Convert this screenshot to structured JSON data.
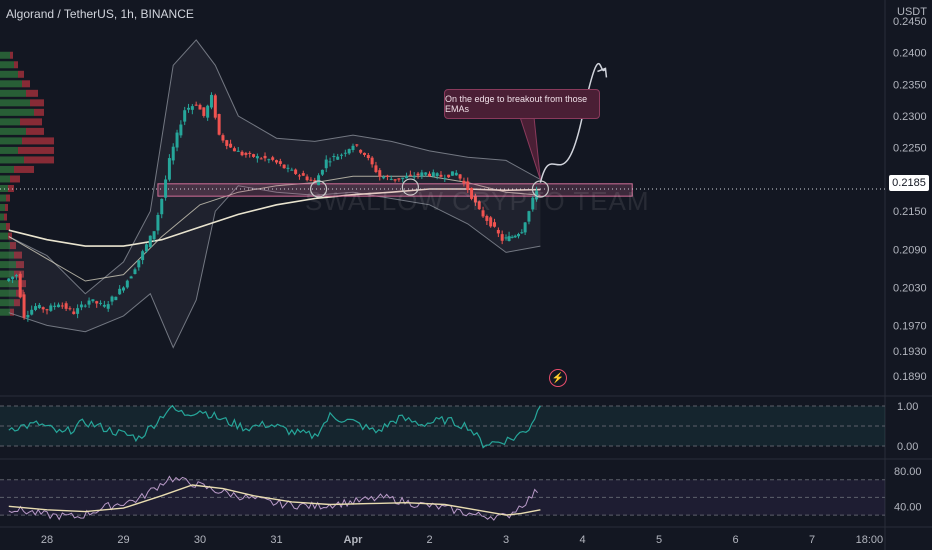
{
  "header": {
    "title": "Algorand / TetherUS, 1h, BINANCE"
  },
  "price_axis": {
    "unit": "USDT",
    "current_price": "0.2185"
  },
  "annotation": {
    "text": "On the edge to breakout from those EMAs"
  },
  "watermark": "SWALLOW CRYPTO TEAM",
  "icons": {
    "alert": "lightning-icon"
  },
  "colors": {
    "up": "#26a69a",
    "down": "#ef5350",
    "ema": "#e9e4cf",
    "band": "#8a8e99",
    "zone": "#d16f98",
    "stoch": "#26a69a",
    "rsi": "#b99ac8",
    "rsi_ma": "#e8dcb0"
  },
  "chart_data": [
    {
      "type": "candlestick",
      "title": "Algorand / TetherUS, 1h, BINANCE",
      "ylabel": "USDT",
      "ylim": [
        0.1865,
        0.2475
      ],
      "x_ticks": [
        "28",
        "29",
        "30",
        "31",
        "Apr",
        "2",
        "3",
        "4",
        "5",
        "6",
        "7",
        "18:00"
      ],
      "y_ticks": [
        "0.2450",
        "0.2400",
        "0.2350",
        "0.2300",
        "0.2250",
        "0.2200",
        "0.2150",
        "0.2090",
        "0.2030",
        "0.1970",
        "0.1930",
        "0.1890"
      ],
      "price_path": [
        [
          27.5,
          0.204
        ],
        [
          27.65,
          0.205
        ],
        [
          27.75,
          0.1985
        ],
        [
          27.9,
          0.2
        ],
        [
          28.05,
          0.1995
        ],
        [
          28.2,
          0.2005
        ],
        [
          28.4,
          0.199
        ],
        [
          28.6,
          0.201
        ],
        [
          28.8,
          0.2
        ],
        [
          29.0,
          0.2025
        ],
        [
          29.15,
          0.205
        ],
        [
          29.3,
          0.2085
        ],
        [
          29.45,
          0.212
        ],
        [
          29.55,
          0.217
        ],
        [
          29.65,
          0.223
        ],
        [
          29.75,
          0.227
        ],
        [
          29.85,
          0.231
        ],
        [
          30.0,
          0.232
        ],
        [
          30.1,
          0.23
        ],
        [
          30.2,
          0.233
        ],
        [
          30.3,
          0.227
        ],
        [
          30.45,
          0.225
        ],
        [
          30.6,
          0.224
        ],
        [
          30.8,
          0.2235
        ],
        [
          31.0,
          0.223
        ],
        [
          31.2,
          0.2215
        ],
        [
          31.4,
          0.2205
        ],
        [
          31.55,
          0.2195
        ],
        [
          31.7,
          0.223
        ],
        [
          31.9,
          0.224
        ],
        [
          32.05,
          0.2255
        ],
        [
          32.2,
          0.224
        ],
        [
          32.4,
          0.2205
        ],
        [
          32.6,
          0.22
        ],
        [
          32.8,
          0.2205
        ],
        [
          33.0,
          0.221
        ],
        [
          33.2,
          0.2205
        ],
        [
          33.4,
          0.221
        ],
        [
          33.55,
          0.2185
        ],
        [
          33.7,
          0.215
        ],
        [
          33.85,
          0.213
        ],
        [
          34.0,
          0.2105
        ],
        [
          34.12,
          0.211
        ],
        [
          34.25,
          0.212
        ],
        [
          34.35,
          0.215
        ],
        [
          34.45,
          0.2185
        ]
      ],
      "upper_band": [
        [
          27.5,
          0.211
        ],
        [
          28.0,
          0.208
        ],
        [
          28.5,
          0.202
        ],
        [
          29.0,
          0.207
        ],
        [
          29.35,
          0.215
        ],
        [
          29.65,
          0.238
        ],
        [
          29.95,
          0.242
        ],
        [
          30.2,
          0.238
        ],
        [
          30.5,
          0.23
        ],
        [
          31.0,
          0.2265
        ],
        [
          31.5,
          0.226
        ],
        [
          32.0,
          0.227
        ],
        [
          32.5,
          0.226
        ],
        [
          33.0,
          0.2245
        ],
        [
          33.5,
          0.2235
        ],
        [
          34.0,
          0.223
        ],
        [
          34.45,
          0.22
        ]
      ],
      "lower_band": [
        [
          27.5,
          0.199
        ],
        [
          28.0,
          0.197
        ],
        [
          28.5,
          0.196
        ],
        [
          29.0,
          0.1985
        ],
        [
          29.35,
          0.202
        ],
        [
          29.65,
          0.1935
        ],
        [
          29.95,
          0.201
        ],
        [
          30.2,
          0.215
        ],
        [
          30.5,
          0.219
        ],
        [
          31.0,
          0.218
        ],
        [
          31.5,
          0.2175
        ],
        [
          32.0,
          0.218
        ],
        [
          32.5,
          0.217
        ],
        [
          33.0,
          0.216
        ],
        [
          33.5,
          0.213
        ],
        [
          34.0,
          0.2085
        ],
        [
          34.45,
          0.2095
        ]
      ],
      "ema_slow": [
        [
          27.5,
          0.212
        ],
        [
          28.0,
          0.2105
        ],
        [
          28.5,
          0.2095
        ],
        [
          29.0,
          0.2095
        ],
        [
          29.5,
          0.2105
        ],
        [
          30.0,
          0.2125
        ],
        [
          30.5,
          0.2145
        ],
        [
          31.0,
          0.216
        ],
        [
          31.5,
          0.217
        ],
        [
          32.0,
          0.2176
        ],
        [
          32.5,
          0.218
        ],
        [
          33.0,
          0.2185
        ],
        [
          33.5,
          0.2185
        ],
        [
          34.0,
          0.2183
        ],
        [
          34.45,
          0.2184
        ]
      ],
      "ema_fast": [
        [
          27.5,
          0.211
        ],
        [
          28.0,
          0.2075
        ],
        [
          28.5,
          0.204
        ],
        [
          29.0,
          0.205
        ],
        [
          29.5,
          0.211
        ],
        [
          30.0,
          0.216
        ],
        [
          30.5,
          0.218
        ],
        [
          31.0,
          0.219
        ],
        [
          31.5,
          0.2195
        ],
        [
          32.0,
          0.2205
        ],
        [
          32.5,
          0.2205
        ],
        [
          33.0,
          0.2205
        ],
        [
          33.5,
          0.2195
        ],
        [
          34.0,
          0.218
        ],
        [
          34.45,
          0.2175
        ]
      ],
      "resistance_zone": [
        0.218,
        0.219
      ],
      "projection_arrow": [
        [
          34.45,
          0.2195
        ],
        [
          34.6,
          0.221
        ],
        [
          34.75,
          0.226
        ],
        [
          35.0,
          0.23
        ],
        [
          35.3,
          0.2375
        ]
      ]
    },
    {
      "type": "line",
      "ylim": [
        -0.2,
        1.2
      ],
      "y_ticks": [
        "1.00",
        "0.00"
      ],
      "x": [
        27.5,
        27.9,
        28.2,
        28.5,
        28.9,
        29.2,
        29.4,
        29.6,
        29.8,
        30.0,
        30.3,
        30.6,
        30.9,
        31.2,
        31.5,
        31.7,
        32.0,
        32.3,
        32.6,
        32.9,
        33.2,
        33.5,
        33.7,
        33.9,
        34.1,
        34.3,
        34.45
      ],
      "values": [
        0.45,
        0.55,
        0.3,
        0.6,
        0.35,
        0.2,
        0.55,
        0.95,
        0.8,
        0.9,
        0.65,
        0.45,
        0.55,
        0.35,
        0.25,
        0.75,
        0.6,
        0.35,
        0.7,
        0.55,
        0.65,
        0.5,
        0.05,
        0.1,
        0.2,
        0.45,
        1.0
      ]
    },
    {
      "type": "line",
      "ylim": [
        20,
        90
      ],
      "y_ticks": [
        "80.00",
        "40.00"
      ],
      "series": [
        {
          "x": [
            27.5,
            28.0,
            28.4,
            28.8,
            29.2,
            29.6,
            29.9,
            30.2,
            30.6,
            31.0,
            31.5,
            32.0,
            32.4,
            32.8,
            33.2,
            33.6,
            34.0,
            34.3,
            34.45
          ],
          "values": [
            38,
            30,
            28,
            40,
            48,
            72,
            66,
            58,
            50,
            43,
            40,
            45,
            50,
            43,
            38,
            30,
            28,
            48,
            62
          ]
        },
        {
          "x": [
            27.5,
            28.0,
            28.5,
            29.0,
            29.5,
            29.9,
            30.3,
            30.7,
            31.2,
            31.7,
            32.2,
            32.7,
            33.2,
            33.6,
            34.0,
            34.2,
            34.45
          ],
          "values": [
            40,
            36,
            34,
            38,
            52,
            64,
            60,
            52,
            45,
            42,
            43,
            44,
            42,
            36,
            30,
            32,
            36
          ]
        }
      ]
    }
  ]
}
